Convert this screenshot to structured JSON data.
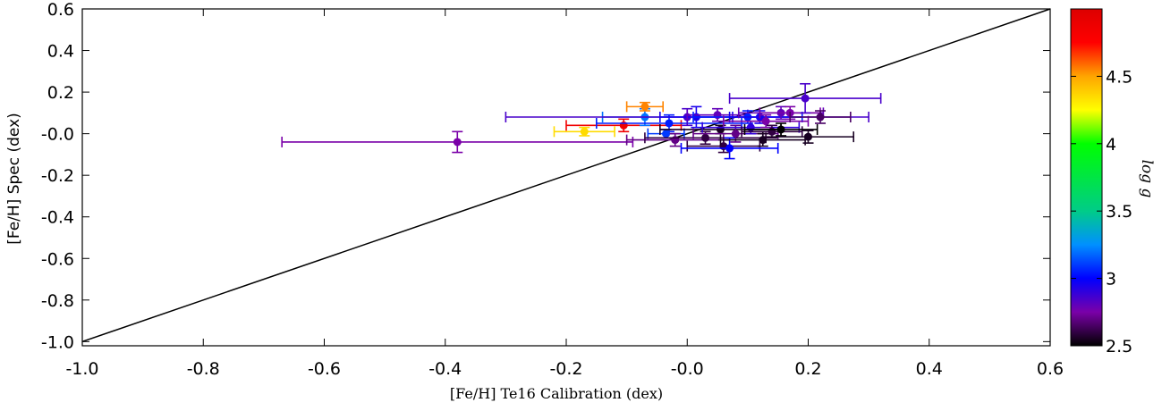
{
  "chart_data": {
    "type": "scatter",
    "title": "",
    "xlabel": "[Fe/H] Te16 Calibration (dex)",
    "ylabel": "[Fe/H]  Spec (dex)",
    "xlim": [
      -1.0,
      0.6
    ],
    "ylim": [
      -1.02,
      0.6
    ],
    "x_ticks": [
      -1.0,
      -0.8,
      -0.6,
      -0.4,
      -0.2,
      0.0,
      0.2,
      0.4,
      0.6
    ],
    "x_tick_labels": [
      "-1.0",
      "-0.8",
      "-0.6",
      "-0.4",
      "-0.2",
      "-0.0",
      "0.2",
      "0.4",
      "0.6"
    ],
    "y_ticks": [
      0.6,
      0.4,
      0.2,
      0.0,
      -0.2,
      -0.4,
      -0.6,
      -0.8,
      -1.0
    ],
    "y_tick_labels": [
      "0.6",
      "0.4",
      "0.2",
      "-0.0",
      "-0.2",
      "-0.4",
      "-0.6",
      "-0.8",
      "-1.0"
    ],
    "one_to_one_line": {
      "x": [
        -1.0,
        0.6
      ],
      "y": [
        -1.0,
        0.6
      ]
    },
    "colorbar": {
      "label": "log g",
      "range": [
        2.5,
        5.0
      ],
      "ticks": [
        2.5,
        3,
        3.5,
        4,
        4.5
      ],
      "tick_labels": [
        "2.5",
        "3",
        "3.5",
        "4",
        "4.5"
      ]
    },
    "points": [
      {
        "x": -0.38,
        "xerr": 0.29,
        "y": -0.04,
        "yerr": 0.05,
        "logg": 2.75
      },
      {
        "x": -0.105,
        "xerr": 0.095,
        "y": 0.04,
        "yerr": 0.03,
        "logg": 4.85
      },
      {
        "x": -0.17,
        "xerr": 0.05,
        "y": 0.01,
        "yerr": 0.02,
        "logg": 4.35
      },
      {
        "x": -0.07,
        "xerr": 0.07,
        "y": 0.08,
        "yerr": 0.04,
        "logg": 3.2
      },
      {
        "x": -0.07,
        "xerr": 0.03,
        "y": 0.13,
        "yerr": 0.02,
        "logg": 4.55
      },
      {
        "x": -0.03,
        "xerr": 0.12,
        "y": 0.05,
        "yerr": 0.04,
        "logg": 3.05
      },
      {
        "x": -0.035,
        "xerr": 0.03,
        "y": 0.0,
        "yerr": 0.02,
        "logg": 3.1
      },
      {
        "x": 0.0,
        "xerr": 0.3,
        "y": 0.08,
        "yerr": 0.04,
        "logg": 2.85
      },
      {
        "x": -0.02,
        "xerr": 0.08,
        "y": -0.03,
        "yerr": 0.03,
        "logg": 2.7
      },
      {
        "x": 0.015,
        "xerr": 0.06,
        "y": 0.08,
        "yerr": 0.05,
        "logg": 2.95
      },
      {
        "x": 0.03,
        "xerr": 0.1,
        "y": -0.02,
        "yerr": 0.03,
        "logg": 2.6
      },
      {
        "x": 0.05,
        "xerr": 0.05,
        "y": 0.09,
        "yerr": 0.03,
        "logg": 2.8
      },
      {
        "x": 0.055,
        "xerr": 0.1,
        "y": 0.02,
        "yerr": 0.02,
        "logg": 2.55
      },
      {
        "x": 0.06,
        "xerr": 0.06,
        "y": -0.06,
        "yerr": 0.03,
        "logg": 2.6
      },
      {
        "x": 0.07,
        "xerr": 0.08,
        "y": -0.07,
        "yerr": 0.05,
        "logg": 3.0
      },
      {
        "x": 0.08,
        "xerr": 0.07,
        "y": 0.0,
        "yerr": 0.04,
        "logg": 2.7
      },
      {
        "x": 0.1,
        "xerr": 0.09,
        "y": 0.08,
        "yerr": 0.03,
        "logg": 3.05
      },
      {
        "x": 0.105,
        "xerr": 0.08,
        "y": 0.03,
        "yerr": 0.03,
        "logg": 2.9
      },
      {
        "x": 0.12,
        "xerr": 0.05,
        "y": 0.08,
        "yerr": 0.03,
        "logg": 2.95
      },
      {
        "x": 0.125,
        "xerr": 0.07,
        "y": -0.03,
        "yerr": 0.03,
        "logg": 2.55
      },
      {
        "x": 0.13,
        "xerr": 0.07,
        "y": 0.06,
        "yerr": 0.03,
        "logg": 2.75
      },
      {
        "x": 0.14,
        "xerr": 0.05,
        "y": 0.01,
        "yerr": 0.03,
        "logg": 2.6
      },
      {
        "x": 0.155,
        "xerr": 0.07,
        "y": 0.1,
        "yerr": 0.03,
        "logg": 2.8
      },
      {
        "x": 0.155,
        "xerr": 0.06,
        "y": 0.02,
        "yerr": 0.03,
        "logg": 2.5
      },
      {
        "x": 0.17,
        "xerr": 0.05,
        "y": 0.1,
        "yerr": 0.03,
        "logg": 2.75
      },
      {
        "x": 0.195,
        "xerr": 0.125,
        "y": 0.17,
        "yerr": 0.07,
        "logg": 2.85
      },
      {
        "x": 0.2,
        "xerr": 0.075,
        "y": -0.015,
        "yerr": 0.03,
        "logg": 2.55
      },
      {
        "x": 0.22,
        "xerr": 0.05,
        "y": 0.08,
        "yerr": 0.03,
        "logg": 2.65
      }
    ]
  }
}
